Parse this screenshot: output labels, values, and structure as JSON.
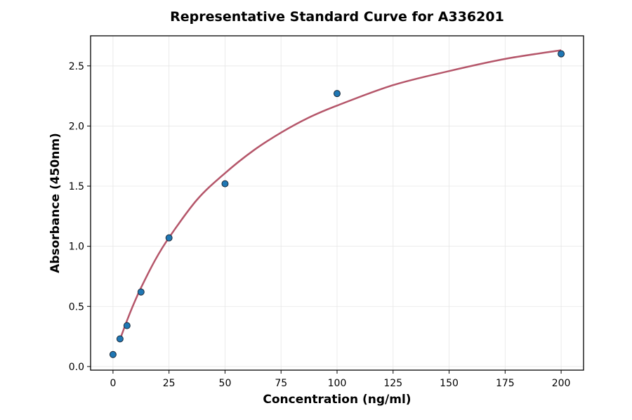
{
  "chart_data": {
    "type": "scatter",
    "title": "Representative Standard Curve for A336201",
    "xlabel": "Concentration (ng/ml)",
    "ylabel": "Absorbance (450nm)",
    "xlim": [
      -10,
      210
    ],
    "ylim": [
      -0.03,
      2.75
    ],
    "xticks": [
      0,
      25,
      50,
      75,
      100,
      125,
      150,
      175,
      200
    ],
    "yticks": [
      0.0,
      0.5,
      1.0,
      1.5,
      2.0,
      2.5
    ],
    "grid": true,
    "points": {
      "x": [
        0,
        3.125,
        6.25,
        12.5,
        25,
        50,
        100,
        200
      ],
      "y": [
        0.1,
        0.23,
        0.34,
        0.62,
        1.07,
        1.52,
        2.27,
        2.6
      ],
      "color": "#1f77b4"
    },
    "fit_curve": {
      "color": "#b5566a",
      "x": [
        3.125,
        6.25,
        9.375,
        12.5,
        18.75,
        25,
        37.5,
        50,
        62.5,
        75,
        87.5,
        100,
        125,
        150,
        175,
        200
      ],
      "y": [
        0.225,
        0.382,
        0.526,
        0.655,
        0.883,
        1.072,
        1.387,
        1.608,
        1.794,
        1.945,
        2.071,
        2.17,
        2.34,
        2.457,
        2.558,
        2.63
      ]
    }
  }
}
